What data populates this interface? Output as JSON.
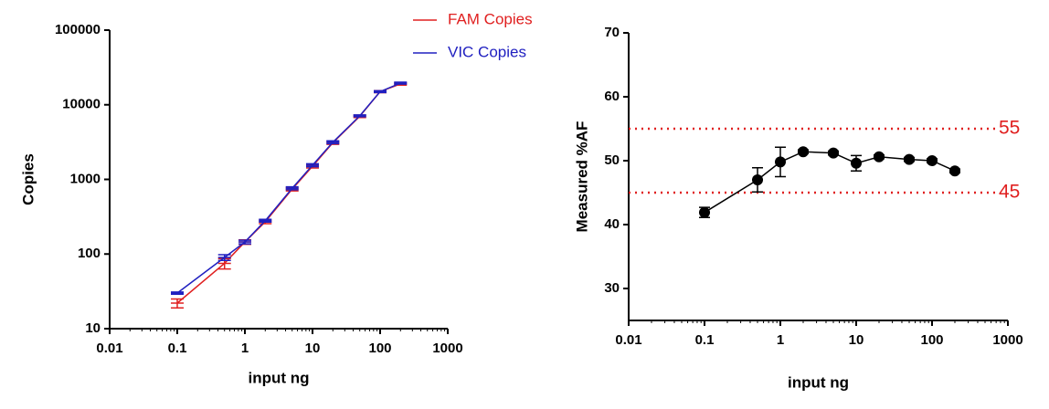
{
  "chart_data": [
    {
      "type": "line",
      "xlabel": "input ng",
      "ylabel": "Copies",
      "xscale": "log",
      "yscale": "log",
      "xlim": [
        0.01,
        1000
      ],
      "ylim": [
        10,
        100000
      ],
      "xticks": [
        0.01,
        0.1,
        1,
        10,
        100,
        1000
      ],
      "yticks": [
        10,
        100,
        1000,
        10000,
        100000
      ],
      "x": [
        0.1,
        0.5,
        1,
        2,
        5,
        10,
        20,
        50,
        100,
        200
      ],
      "legend": "top-right",
      "markers": false,
      "series": [
        {
          "name": "FAM Copies",
          "color": "#e02020",
          "values": [
            22,
            75,
            145,
            270,
            740,
            1500,
            3100,
            7000,
            15000,
            19000
          ],
          "errors": [
            3,
            12,
            10,
            15,
            40,
            80,
            150,
            250,
            500,
            700
          ]
        },
        {
          "name": "VIC Copies",
          "color": "#2020c0",
          "values": [
            30,
            90,
            145,
            280,
            760,
            1550,
            3150,
            7100,
            15000,
            19500
          ],
          "errors": [
            1,
            8,
            8,
            12,
            35,
            70,
            140,
            200,
            400,
            600
          ]
        }
      ]
    },
    {
      "type": "line",
      "xlabel": "input ng",
      "ylabel": "Measured %AF",
      "xscale": "log",
      "xlim": [
        0.01,
        1000
      ],
      "ylim": [
        25,
        70
      ],
      "xticks": [
        0.01,
        0.1,
        1,
        10,
        100,
        1000
      ],
      "yticks": [
        30,
        40,
        50,
        60,
        70
      ],
      "x": [
        0.1,
        0.5,
        1,
        2,
        5,
        10,
        20,
        50,
        100,
        200
      ],
      "markers": true,
      "hlines": [
        55,
        45
      ],
      "hline_color": "#e02020",
      "series": [
        {
          "color": "#000000",
          "values": [
            41.9,
            47,
            49.8,
            51.4,
            51.2,
            49.6,
            50.6,
            50.2,
            50,
            48.4
          ],
          "errors": [
            0.8,
            1.9,
            2.3,
            0.3,
            0.3,
            1.2,
            0.3,
            0.3,
            0.3,
            0.3
          ]
        }
      ]
    }
  ]
}
